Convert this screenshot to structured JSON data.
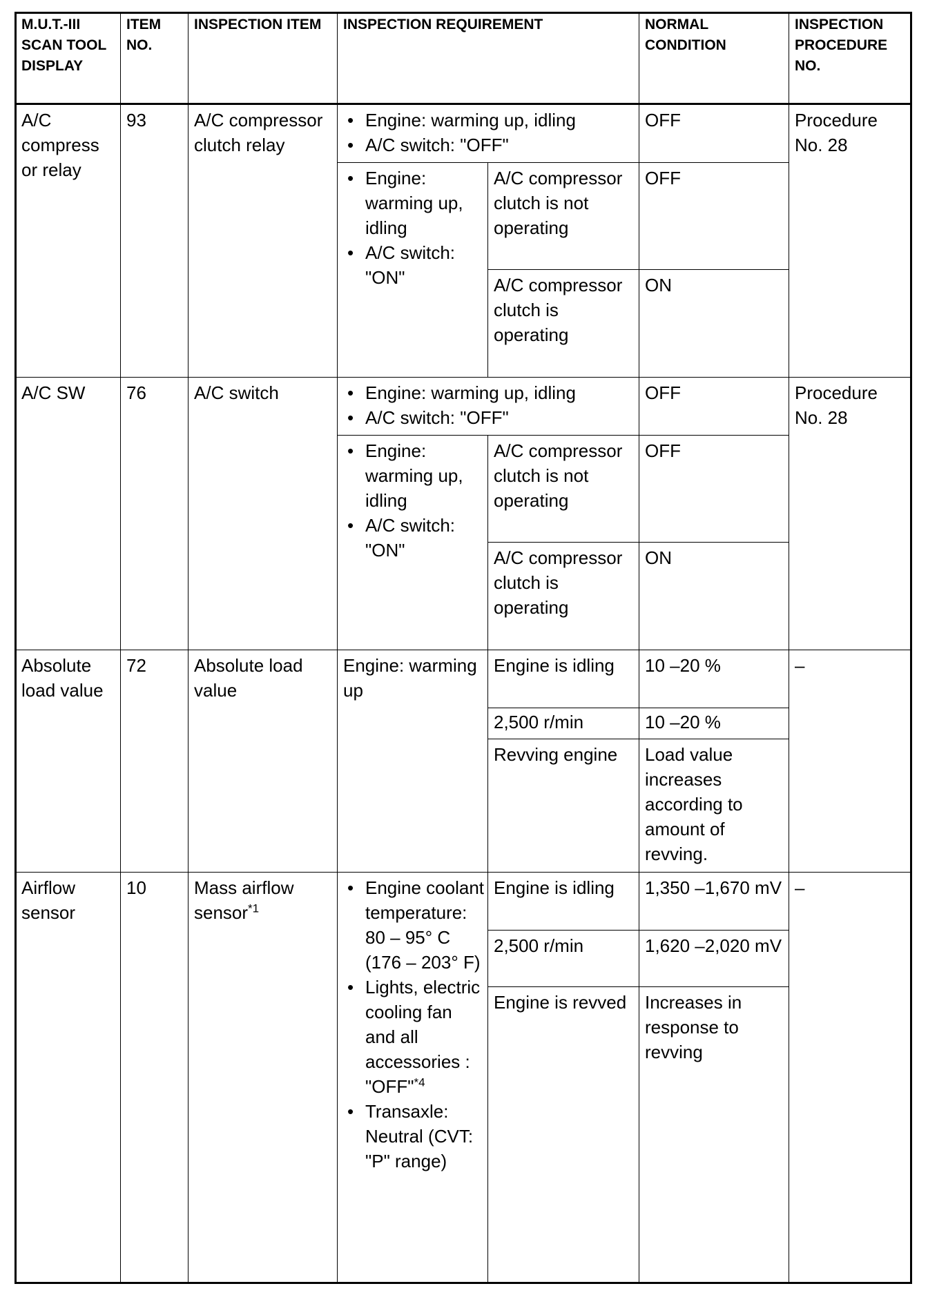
{
  "headers": [
    "M.U.T.-III SCAN TOOL DISPLAY",
    "ITEM NO.",
    "INSPECTION ITEM",
    "INSPECTION REQUIREMENT",
    "NORMAL CONDITION",
    "INSPECTION PROCEDURE NO."
  ],
  "rows": [
    {
      "display": "A/C compress or relay",
      "item_no": "93",
      "item": "A/C compressor clutch relay",
      "req1": [
        "Engine: warming up, idling",
        "A/C switch: \"OFF\""
      ],
      "nc1": "OFF",
      "req2": [
        "Engine: warming up, idling",
        "A/C switch: \"ON\""
      ],
      "sub": [
        {
          "cond": "A/C compressor clutch is not operating",
          "nc": "OFF"
        },
        {
          "cond": "A/C compressor clutch is operating",
          "nc": "ON"
        }
      ],
      "procedure": "Procedure No. 28"
    },
    {
      "display": "A/C SW",
      "item_no": "76",
      "item": "A/C switch",
      "req1": [
        "Engine: warming up, idling",
        "A/C switch: \"OFF\""
      ],
      "nc1": "OFF",
      "req2": [
        "Engine: warming up, idling",
        "A/C switch: \"ON\""
      ],
      "sub": [
        {
          "cond": "A/C compressor clutch is not operating",
          "nc": "OFF"
        },
        {
          "cond": "A/C compressor clutch is operating",
          "nc": "ON"
        }
      ],
      "procedure": "Procedure No. 28"
    },
    {
      "display": "Absolute load value",
      "item_no": "72",
      "item": "Absolute load value",
      "req": "Engine: warming up",
      "sub": [
        {
          "cond": "Engine is idling",
          "nc": "10 –20 %"
        },
        {
          "cond": "2,500 r/min",
          "nc": "10 –20 %"
        },
        {
          "cond": "Revving engine",
          "nc": "Load value increases according to amount of revving."
        }
      ],
      "procedure": "–"
    },
    {
      "display": "Airflow sensor",
      "item_no": "10",
      "item": "Mass airflow sensor",
      "item_note": "*1",
      "req": [
        "Engine coolant temperature: 80 – 95° C (176 – 203° F)",
        "Lights, electric cooling fan and all accessories : \"OFF\"",
        "Transaxle: Neutral (CVT: \"P\" range)"
      ],
      "req_note": "*4",
      "sub": [
        {
          "cond": "Engine is idling",
          "nc": "1,350 –1,670 mV"
        },
        {
          "cond": "2,500 r/min",
          "nc": "1,620 –2,020 mV"
        },
        {
          "cond": "Engine is revved",
          "nc": "Increases in response to revving"
        }
      ],
      "procedure": "–"
    }
  ]
}
